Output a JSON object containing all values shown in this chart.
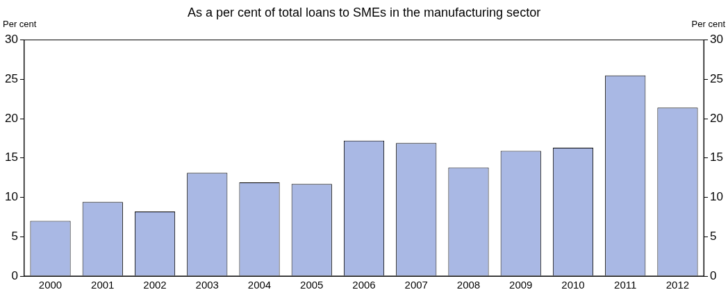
{
  "chart_data": {
    "type": "bar",
    "title": "As a per cent of total loans to SMEs in the manufacturing sector",
    "ylabel": "Per cent",
    "y2label": "Per cent",
    "categories": [
      "2000",
      "2001",
      "2002",
      "2003",
      "2004",
      "2005",
      "2006",
      "2007",
      "2008",
      "2009",
      "2010",
      "2011",
      "2012"
    ],
    "values": [
      7.0,
      9.4,
      8.2,
      13.1,
      11.9,
      11.7,
      17.2,
      16.9,
      13.8,
      15.9,
      16.3,
      25.5,
      21.4
    ],
    "color": "#a9b8e4",
    "ylim": [
      0,
      30
    ],
    "yticks": [
      0,
      5,
      10,
      15,
      20,
      25,
      30
    ],
    "y2lim": [
      0,
      30
    ],
    "y2ticks": [
      0,
      5,
      10,
      15,
      20,
      25,
      30
    ],
    "grid": false,
    "legend": false
  }
}
